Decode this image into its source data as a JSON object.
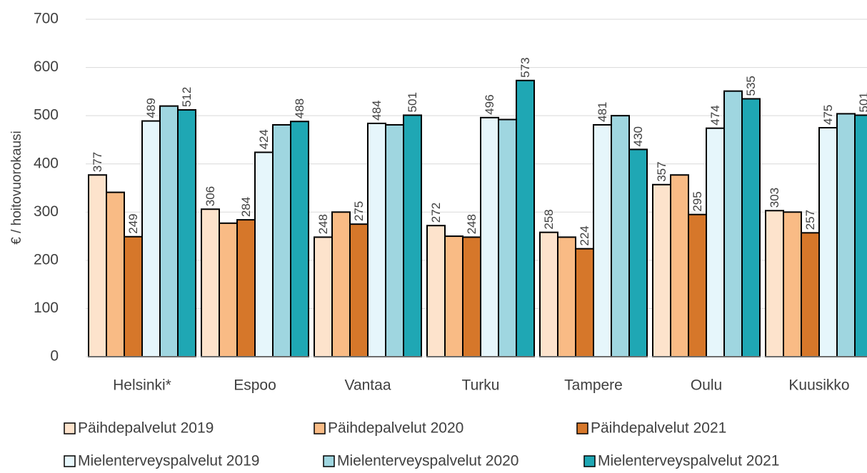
{
  "chart_data": {
    "type": "bar",
    "y_axis_label": "€ / hoitovuorokausi",
    "categories": [
      "Helsinki*",
      "Espoo",
      "Vantaa",
      "Turku",
      "Tampere",
      "Oulu",
      "Kuusikko"
    ],
    "series": [
      {
        "name": "Päihdepalvelut 2019",
        "color": "#fde3cc",
        "show_labels": true,
        "values": [
          377,
          306,
          248,
          272,
          258,
          357,
          303
        ]
      },
      {
        "name": "Päihdepalvelut 2020",
        "color": "#f9bb85",
        "show_labels": false,
        "values": [
          341,
          277,
          300,
          250,
          248,
          377,
          300
        ]
      },
      {
        "name": "Päihdepalvelut 2021",
        "color": "#d6772a",
        "show_labels": true,
        "values": [
          249,
          284,
          275,
          248,
          224,
          295,
          257
        ]
      },
      {
        "name": "Mielenterveyspalvelut 2019",
        "color": "#e6f6fb",
        "show_labels": true,
        "values": [
          489,
          424,
          484,
          496,
          481,
          474,
          475
        ]
      },
      {
        "name": "Mielenterveyspalvelut 2020",
        "color": "#9fd6e0",
        "show_labels": false,
        "values": [
          520,
          481,
          481,
          492,
          500,
          551,
          504
        ]
      },
      {
        "name": "Mielenterveyspalvelut 2021",
        "color": "#1fa7b4",
        "show_labels": true,
        "values": [
          512,
          488,
          501,
          573,
          430,
          535,
          501
        ]
      }
    ],
    "ylim": [
      0,
      700
    ],
    "yticks": [
      0,
      100,
      200,
      300,
      400,
      500,
      600,
      700
    ],
    "grid": true,
    "legend": "bottom"
  }
}
